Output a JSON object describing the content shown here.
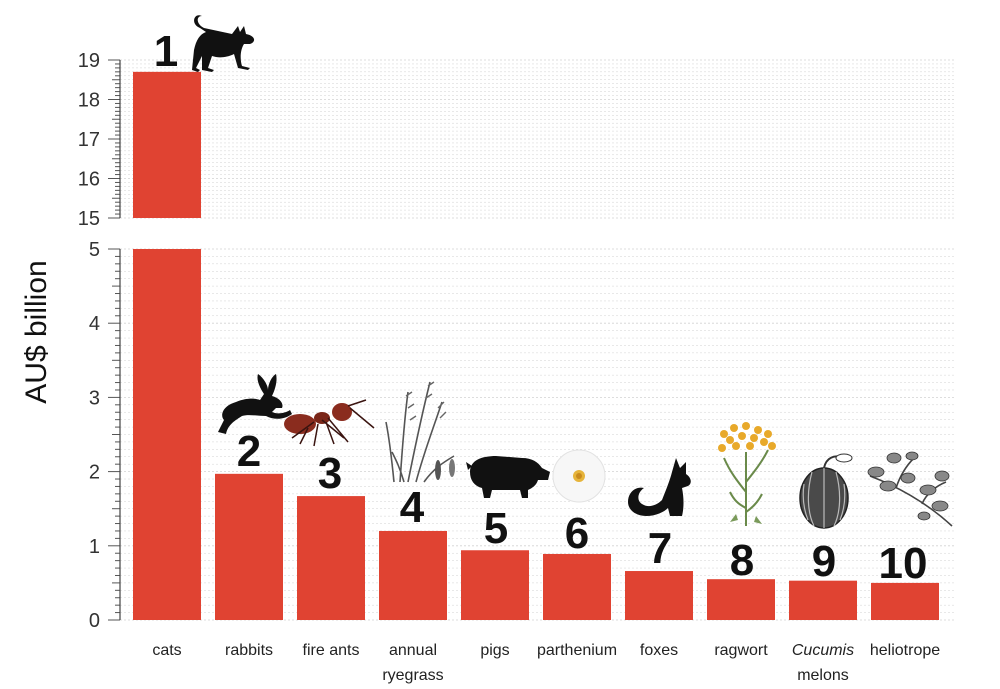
{
  "chart_data": {
    "type": "bar",
    "ylabel": "AU$ billion",
    "axis_break": {
      "lower_range": [
        0,
        5
      ],
      "upper_range": [
        15,
        19
      ]
    },
    "lower_ticks": [
      "0",
      "1",
      "2",
      "3",
      "4",
      "5"
    ],
    "upper_ticks": [
      "15",
      "16",
      "17",
      "18",
      "19"
    ],
    "grid": true,
    "bar_color": "#e04332",
    "categories": [
      {
        "label": "cats",
        "line2": "",
        "italic": "",
        "rank": "1",
        "value": 18.7,
        "icon": "cat-icon"
      },
      {
        "label": "rabbits",
        "line2": "",
        "italic": "",
        "rank": "2",
        "value": 1.97,
        "icon": "rabbit-icon"
      },
      {
        "label": "fire ants",
        "line2": "",
        "italic": "",
        "rank": "3",
        "value": 1.67,
        "icon": "ant-icon"
      },
      {
        "label": "annual",
        "line2": "ryegrass",
        "italic": "",
        "rank": "4",
        "value": 1.2,
        "icon": "ryegrass-icon"
      },
      {
        "label": "pigs",
        "line2": "",
        "italic": "",
        "rank": "5",
        "value": 0.94,
        "icon": "pig-icon"
      },
      {
        "label": "parthenium",
        "line2": "",
        "italic": "",
        "rank": "6",
        "value": 0.89,
        "icon": "flower-icon"
      },
      {
        "label": "foxes",
        "line2": "",
        "italic": "",
        "rank": "7",
        "value": 0.66,
        "icon": "fox-icon"
      },
      {
        "label": "ragwort",
        "line2": "",
        "italic": "",
        "rank": "8",
        "value": 0.55,
        "icon": "ragwort-icon"
      },
      {
        "label": "",
        "line2": "melons",
        "italic": "Cucumis",
        "rank": "9",
        "value": 0.53,
        "icon": "melon-icon"
      },
      {
        "label": "heliotrope",
        "line2": "",
        "italic": "",
        "rank": "10",
        "value": 0.5,
        "icon": "heliotrope-icon"
      }
    ]
  }
}
